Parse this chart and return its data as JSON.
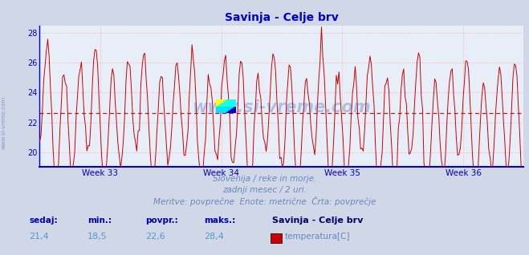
{
  "title": "Savinja - Celje brv",
  "title_color": "#0000cc",
  "background_color": "#d0d8e8",
  "plot_bg_color": "#e8eef8",
  "grid_color": "#ffaaaa",
  "line_color": "#cc0000",
  "avg_value": 22.6,
  "y_min": 19.0,
  "y_max": 28.5,
  "y_ticks": [
    20,
    22,
    24,
    26,
    28
  ],
  "x_tick_labels": [
    "Week 33",
    "Week 34",
    "Week 35",
    "Week 36"
  ],
  "x_tick_positions": [
    0.125,
    0.375,
    0.625,
    0.875
  ],
  "bottom_text1": "Slovenija / reke in morje.",
  "bottom_text2": "zadnji mesec / 2 uri.",
  "bottom_text3": "Meritve: povprečne  Enote: metrične  Črta: povprečje",
  "footer_color": "#6688bb",
  "stat_label_color": "#0000aa",
  "stat_value_color": "#5599cc",
  "stat_bold_color": "#000066",
  "sedaj": "21,4",
  "min_val": "18,5",
  "povpr": "22,6",
  "maks": "28,4",
  "legend_title": "Savinja - Celje brv",
  "legend_item": "temperatura[C]",
  "legend_color": "#cc0000",
  "axis_color": "#0000cc",
  "watermark": "www.si-vreme.com",
  "watermark_color": "#3355aa",
  "watermark_alpha": 0.3,
  "sidebar_text": "www.si-vreme.com",
  "sidebar_color": "#4466aa",
  "n_points": 360,
  "base_temp": 22.6,
  "daily_amplitude": 3.5,
  "trend_amount": -0.8,
  "noise_std": 0.35
}
